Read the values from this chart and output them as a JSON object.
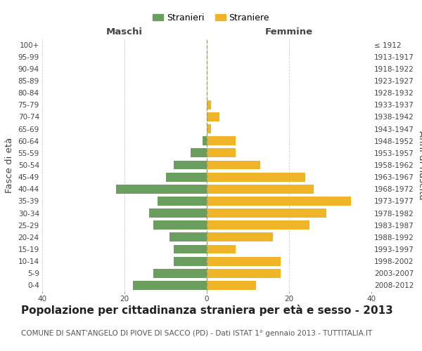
{
  "age_groups": [
    "0-4",
    "5-9",
    "10-14",
    "15-19",
    "20-24",
    "25-29",
    "30-34",
    "35-39",
    "40-44",
    "45-49",
    "50-54",
    "55-59",
    "60-64",
    "65-69",
    "70-74",
    "75-79",
    "80-84",
    "85-89",
    "90-94",
    "95-99",
    "100+"
  ],
  "birth_years": [
    "2008-2012",
    "2003-2007",
    "1998-2002",
    "1993-1997",
    "1988-1992",
    "1983-1987",
    "1978-1982",
    "1973-1977",
    "1968-1972",
    "1963-1967",
    "1958-1962",
    "1953-1957",
    "1948-1952",
    "1943-1947",
    "1938-1942",
    "1933-1937",
    "1928-1932",
    "1923-1927",
    "1918-1922",
    "1913-1917",
    "≤ 1912"
  ],
  "maschi": [
    18,
    13,
    8,
    8,
    9,
    13,
    14,
    12,
    22,
    10,
    8,
    4,
    1,
    0,
    0,
    0,
    0,
    0,
    0,
    0,
    0
  ],
  "femmine": [
    12,
    18,
    18,
    7,
    16,
    25,
    29,
    35,
    26,
    24,
    13,
    7,
    7,
    1,
    3,
    1,
    0,
    0,
    0,
    0,
    0
  ],
  "maschi_color": "#6a9e5f",
  "femmine_color": "#f0b429",
  "background_color": "#ffffff",
  "grid_color": "#cccccc",
  "title": "Popolazione per cittadinanza straniera per età e sesso - 2013",
  "subtitle": "COMUNE DI SANT'ANGELO DI PIOVE DI SACCO (PD) - Dati ISTAT 1° gennaio 2013 - TUTTITALIA.IT",
  "xlabel_left": "Maschi",
  "xlabel_right": "Femmine",
  "ylabel_left": "Fasce di età",
  "ylabel_right": "Anni di nascita",
  "legend_stranieri": "Stranieri",
  "legend_straniere": "Straniere",
  "xlim": 40,
  "title_fontsize": 11,
  "subtitle_fontsize": 7.5,
  "tick_fontsize": 7.5,
  "label_fontsize": 9.5
}
